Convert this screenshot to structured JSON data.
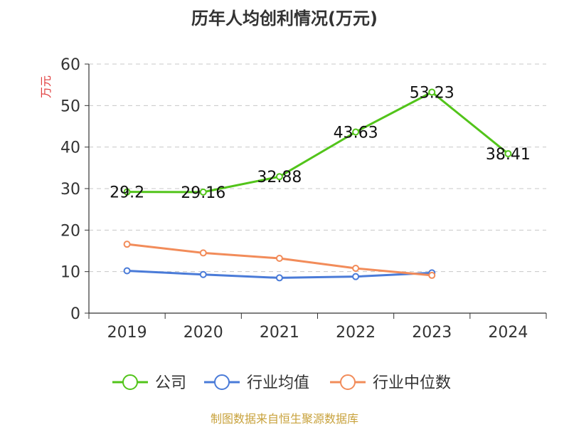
{
  "chart_data": {
    "type": "line",
    "title": "历年人均创利情况(万元)",
    "ylabel": "万元",
    "xlabel": "",
    "categories": [
      "2019",
      "2020",
      "2021",
      "2022",
      "2023",
      "2024"
    ],
    "ylim": [
      0,
      60
    ],
    "yticks": [
      0,
      10,
      20,
      30,
      40,
      50,
      60
    ],
    "grid": true,
    "legend_position": "bottom",
    "series": [
      {
        "name": "公司",
        "color": "#52c41a",
        "values": [
          29.2,
          29.16,
          32.88,
          43.63,
          53.23,
          38.41
        ],
        "labels": [
          "29.2",
          "29.16",
          "32.88",
          "43.63",
          "53.23",
          "38.41"
        ]
      },
      {
        "name": "行业均值",
        "color": "#4a7bd8",
        "values": [
          10.2,
          9.3,
          8.5,
          8.8,
          9.7,
          null
        ]
      },
      {
        "name": "行业中位数",
        "color": "#f28c5a",
        "values": [
          16.6,
          14.5,
          13.2,
          10.8,
          9.1,
          null
        ]
      }
    ]
  },
  "source": "制图数据来自恒生聚源数据库"
}
